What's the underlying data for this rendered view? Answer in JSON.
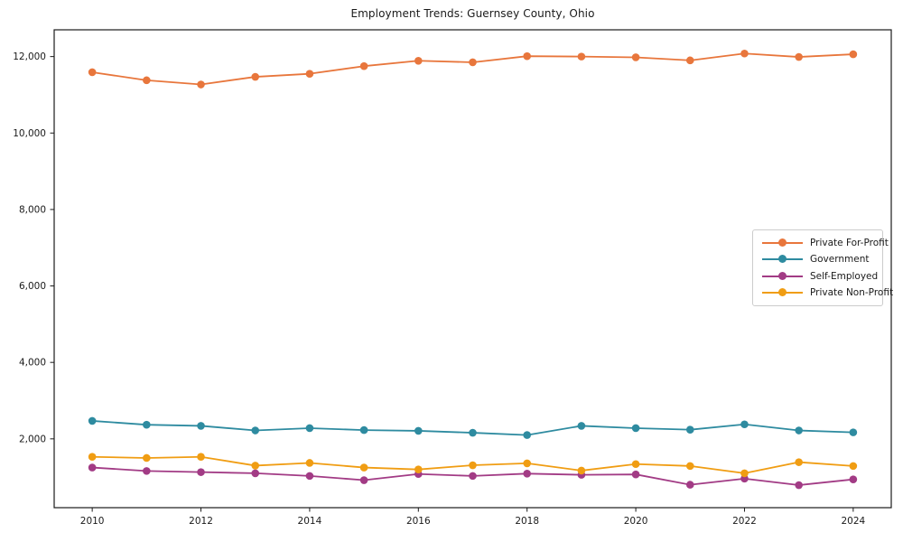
{
  "chart_data": {
    "type": "line",
    "title": "Employment Trends: Guernsey County, Ohio",
    "xlabel": "",
    "ylabel": "",
    "grid": false,
    "legend_position": "center right",
    "background_color": "#ffffff",
    "axis_color": "#1a1a1a",
    "legend_border_color": "#cccccc",
    "x": [
      2010,
      2011,
      2012,
      2013,
      2014,
      2015,
      2016,
      2017,
      2018,
      2019,
      2020,
      2021,
      2022,
      2023,
      2024
    ],
    "x_ticks": [
      2010,
      2012,
      2014,
      2016,
      2018,
      2020,
      2022,
      2024
    ],
    "x_tick_labels": [
      "2010",
      "2012",
      "2014",
      "2016",
      "2018",
      "2020",
      "2022",
      "2024"
    ],
    "y_ticks": [
      2000,
      4000,
      6000,
      8000,
      10000,
      12000
    ],
    "y_tick_labels": [
      "2,000",
      "4,000",
      "6,000",
      "8,000",
      "10,000",
      "12,000"
    ],
    "xlim": [
      2009.3,
      2024.7
    ],
    "ylim": [
      200,
      12700
    ],
    "series": [
      {
        "name": "Private For-Profit",
        "color": "#e8763c",
        "values": [
          11590,
          11380,
          11270,
          11470,
          11550,
          11750,
          11890,
          11850,
          12010,
          12000,
          11980,
          11900,
          12080,
          11990,
          12060
        ]
      },
      {
        "name": "Government",
        "color": "#2e8ba0",
        "values": [
          2470,
          2370,
          2340,
          2220,
          2280,
          2230,
          2210,
          2160,
          2100,
          2340,
          2280,
          2240,
          2380,
          2220,
          2170
        ]
      },
      {
        "name": "Self-Employed",
        "color": "#a23b85",
        "values": [
          1250,
          1160,
          1130,
          1100,
          1030,
          920,
          1080,
          1030,
          1090,
          1060,
          1070,
          800,
          960,
          790,
          940
        ]
      },
      {
        "name": "Private Non-Profit",
        "color": "#f09d13",
        "values": [
          1530,
          1500,
          1530,
          1300,
          1370,
          1250,
          1200,
          1310,
          1360,
          1170,
          1340,
          1290,
          1100,
          1390,
          1290
        ]
      }
    ]
  }
}
